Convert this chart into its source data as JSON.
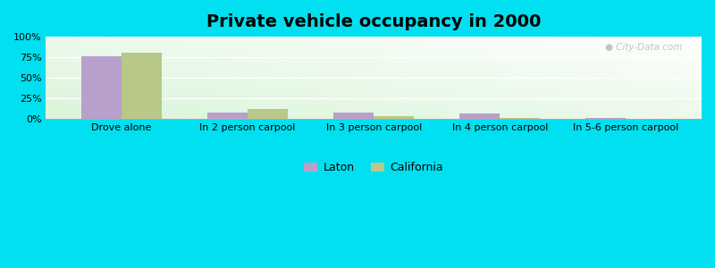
{
  "title": "Private vehicle occupancy in 2000",
  "categories": [
    "Drove alone",
    "In 2 person carpool",
    "In 3 person carpool",
    "In 4 person carpool",
    "In 5-6 person carpool"
  ],
  "laton_values": [
    76.5,
    7.5,
    8.5,
    7.0,
    1.2
  ],
  "california_values": [
    80.5,
    12.5,
    4.0,
    1.5,
    0.8
  ],
  "laton_color": "#b8a0cc",
  "california_color": "#b8c888",
  "ylim": [
    0,
    100
  ],
  "yticks": [
    0,
    25,
    50,
    75,
    100
  ],
  "ytick_labels": [
    "0%",
    "25%",
    "50%",
    "75%",
    "100%"
  ],
  "background_outer": "#00e0f0",
  "bar_width": 0.32,
  "title_fontsize": 14,
  "tick_fontsize": 8,
  "legend_fontsize": 9,
  "watermark_text": "City-Data.com",
  "watermark_color": "#b8c8c8"
}
